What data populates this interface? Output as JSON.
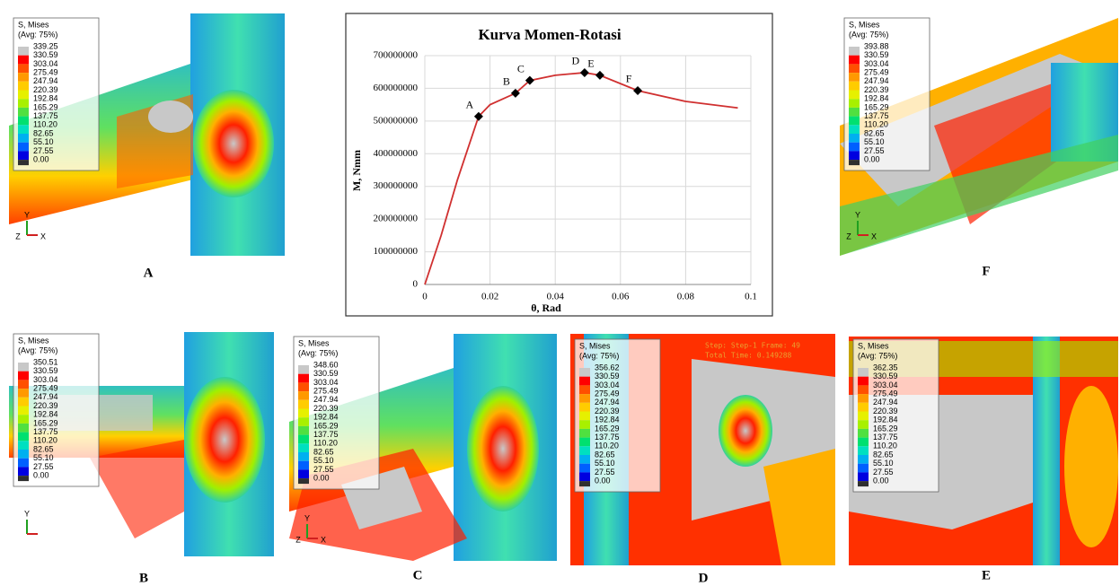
{
  "chart_data": {
    "type": "line",
    "title": "Kurva Momen-Rotasi",
    "x_label": "θ, Rad",
    "y_label": "M, Nmm",
    "series": [
      {
        "color": "#d03030",
        "x": [
          0,
          0.005,
          0.01,
          0.0165,
          0.02,
          0.0278,
          0.0322,
          0.04,
          0.049,
          0.0537,
          0.0653,
          0.08,
          0.096
        ],
        "values": [
          0,
          150000000,
          320000000,
          514000000,
          550000000,
          585000000,
          624000000,
          640000000,
          648000000,
          640000000,
          593000000,
          560000000,
          540000000
        ]
      }
    ],
    "points": {
      "labels": [
        "A",
        "B",
        "C",
        "D",
        "E",
        "F"
      ],
      "x": [
        0.0165,
        0.0278,
        0.0322,
        0.049,
        0.0537,
        0.0653
      ],
      "values": [
        514000000,
        585000000,
        624000000,
        648000000,
        640000000,
        593000000
      ],
      "color": "#000000"
    },
    "xlim": [
      0,
      0.1
    ],
    "xticks": [
      0,
      0.02,
      0.04,
      0.06,
      0.08,
      0.1
    ],
    "ylim": [
      0,
      700000000
    ],
    "yticks": [
      0,
      100000000,
      200000000,
      300000000,
      400000000,
      500000000,
      600000000,
      700000000
    ],
    "grid": true
  },
  "legend": {
    "title": "S, Mises",
    "subtitle": "(Avg: 75%)",
    "levels": [
      "330.59",
      "303.04",
      "275.49",
      "247.94",
      "220.39",
      "192.84",
      "165.29",
      "137.75",
      "110.20",
      "82.65",
      "55.10",
      "27.55",
      "0.00"
    ]
  },
  "triad": {
    "y": "Y",
    "z": "Z",
    "x": "X"
  },
  "panels": [
    {
      "label": "A",
      "max": "339.25"
    },
    {
      "label": "F",
      "max": "393.88"
    },
    {
      "label": "B",
      "max": "350.51"
    },
    {
      "label": "C",
      "max": "348.60"
    },
    {
      "label": "D",
      "max": "356.62",
      "step": "Step: Step-1   Frame: 49",
      "time": "Total Time: 0.149288"
    },
    {
      "label": "E",
      "max": "362.35"
    }
  ]
}
